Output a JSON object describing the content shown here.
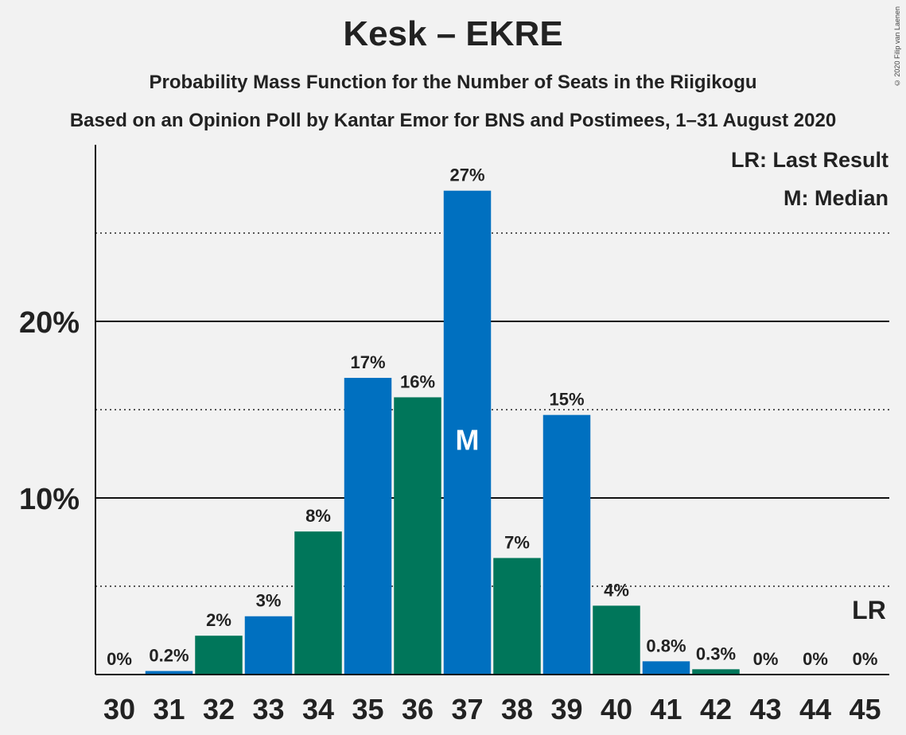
{
  "chart_data": {
    "type": "bar",
    "title": "Kesk – EKRE",
    "subtitle": "Probability Mass Function for the Number of Seats in the Riigikogu",
    "source": "Based on an Opinion Poll by Kantar Emor for BNS and Postimees, 1–31 August 2020",
    "copyright": "© 2020 Filip van Laenen",
    "categories": [
      "30",
      "31",
      "32",
      "33",
      "34",
      "35",
      "36",
      "37",
      "38",
      "39",
      "40",
      "41",
      "42",
      "43",
      "44",
      "45"
    ],
    "values": [
      0,
      0.2,
      2.2,
      3.3,
      8.1,
      16.8,
      15.7,
      27.4,
      6.6,
      14.7,
      3.9,
      0.75,
      0.3,
      0,
      0,
      0
    ],
    "value_labels": [
      "0%",
      "0.2%",
      "2%",
      "3%",
      "8%",
      "17%",
      "16%",
      "27%",
      "7%",
      "15%",
      "4%",
      "0.8%",
      "0.3%",
      "0%",
      "0%",
      "0%"
    ],
    "bar_colors": [
      "#0070c0",
      "#0070c0",
      "#00765a",
      "#0070c0",
      "#00765a",
      "#0070c0",
      "#00765a",
      "#0070c0",
      "#00765a",
      "#0070c0",
      "#00765a",
      "#0070c0",
      "#00765a",
      "#0070c0",
      "#00765a",
      "#0070c0"
    ],
    "ylim": [
      0,
      30
    ],
    "y_ticks": [
      {
        "value": 10,
        "label": "10%"
      },
      {
        "value": 20,
        "label": "20%"
      }
    ],
    "dotted_gridlines": [
      5,
      15,
      25
    ],
    "median_label": "M",
    "median_category": "37",
    "last_result_label": "LR",
    "last_result_category": "45",
    "legend": [
      {
        "text": "LR: Last Result"
      },
      {
        "text": "M: Median"
      }
    ],
    "legend_position": "top-right"
  }
}
